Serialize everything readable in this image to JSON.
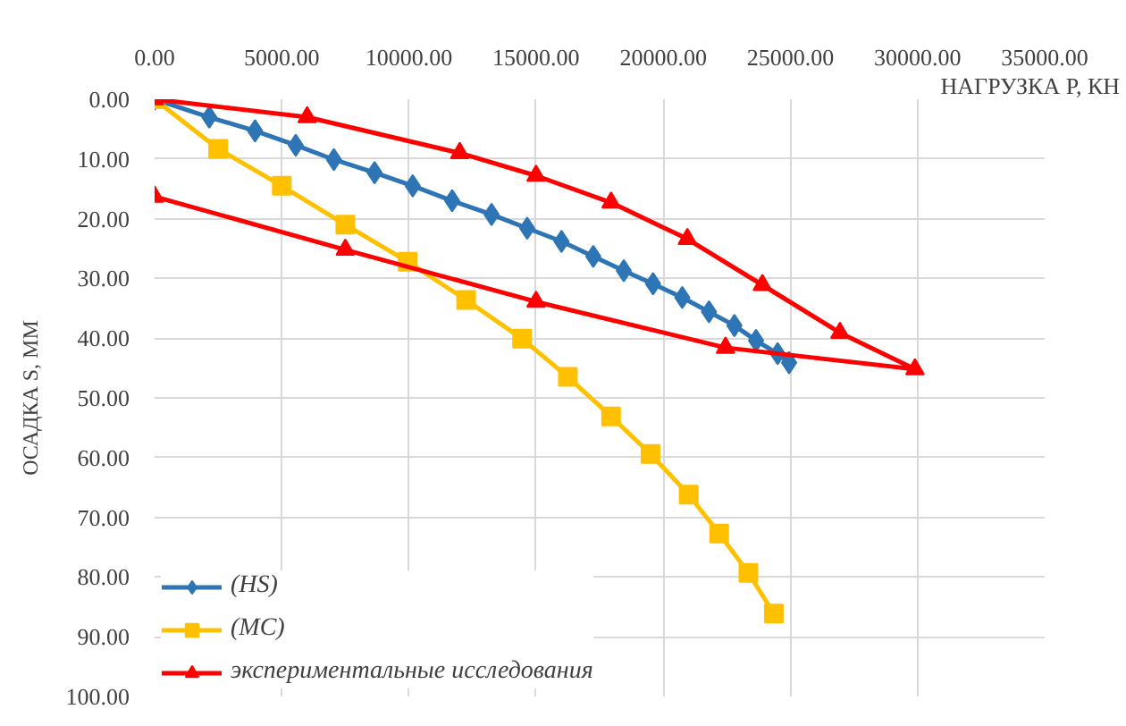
{
  "chart_data": {
    "type": "line",
    "xlabel": "НАГРУЗКА Р, КН",
    "ylabel": "ОСАДКА S, ММ",
    "xlim": [
      0,
      35000
    ],
    "xticks": [
      {
        "value": 0,
        "label": "0.00"
      },
      {
        "value": 5000,
        "label": "5000.00"
      },
      {
        "value": 10000,
        "label": "10000.00"
      },
      {
        "value": 15000,
        "label": "15000.00"
      },
      {
        "value": 20000,
        "label": "20000.00"
      },
      {
        "value": 25000,
        "label": "25000.00"
      },
      {
        "value": 30000,
        "label": "30000.00"
      },
      {
        "value": 35000,
        "label": "35000.00"
      }
    ],
    "ylim": [
      100,
      0
    ],
    "yticks": [
      {
        "value": 0,
        "label": "0.00"
      },
      {
        "value": 10,
        "label": "10.00"
      },
      {
        "value": 20,
        "label": "20.00"
      },
      {
        "value": 30,
        "label": "30.00"
      },
      {
        "value": 40,
        "label": "40.00"
      },
      {
        "value": 50,
        "label": "50.00"
      },
      {
        "value": 60,
        "label": "60.00"
      },
      {
        "value": 70,
        "label": "70.00"
      },
      {
        "value": 80,
        "label": "80.00"
      },
      {
        "value": 90,
        "label": "90.00"
      },
      {
        "value": 100,
        "label": "100.00"
      }
    ],
    "grid": true,
    "legend": "bottom left",
    "series": [
      {
        "name": "(HS)",
        "color": "#2e75b6",
        "marker": "diamond",
        "x": [
          0,
          2150,
          3950,
          5550,
          7050,
          8650,
          10150,
          11700,
          13250,
          14650,
          16000,
          17250,
          18450,
          19600,
          20750,
          21800,
          22800,
          23650,
          24500,
          24950
        ],
        "values": [
          0,
          3.0,
          5.3,
          7.7,
          10.1,
          12.3,
          14.5,
          17.0,
          19.3,
          21.6,
          23.8,
          26.3,
          28.7,
          30.9,
          33.2,
          35.6,
          37.9,
          40.4,
          42.6,
          44.1
        ]
      },
      {
        "name": "(MC)",
        "color": "#ffc000",
        "marker": "square",
        "x": [
          0,
          2500,
          5000,
          7500,
          9950,
          12250,
          14450,
          16250,
          17950,
          19500,
          21000,
          22200,
          23350,
          24350
        ],
        "values": [
          0,
          8.3,
          14.5,
          21.0,
          27.2,
          33.6,
          40.1,
          46.5,
          53.1,
          59.4,
          66.2,
          72.7,
          79.3,
          86.1
        ]
      },
      {
        "name": "экспериментальные исследования",
        "color": "#ff0000",
        "marker": "triangle",
        "x": [
          0,
          6000,
          12000,
          15000,
          17950,
          20950,
          23900,
          26950,
          29900,
          22450,
          15000,
          7500,
          0
        ],
        "values": [
          0,
          3.0,
          9.0,
          12.8,
          17.3,
          23.4,
          31.1,
          39.1,
          45.2,
          41.6,
          33.9,
          25.2,
          16.3
        ]
      }
    ]
  }
}
